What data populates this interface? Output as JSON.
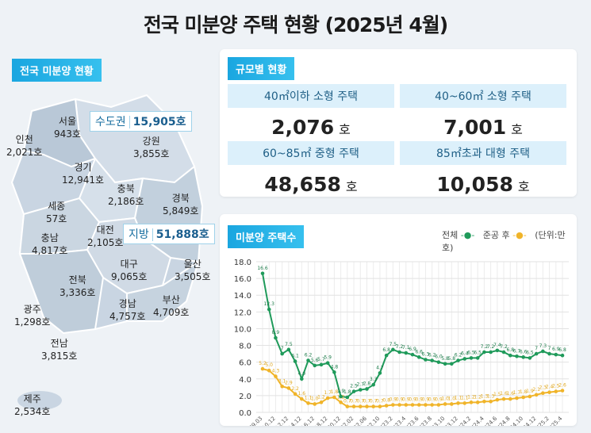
{
  "title": "전국 미분양 주택 현황 (2025년 4월)",
  "map": {
    "tag": "전국 미분양 현황",
    "capital": {
      "label": "수도권",
      "value": "15,905호"
    },
    "provincial": {
      "label": "지방",
      "value": "51,888호"
    },
    "regions": [
      {
        "name": "서울",
        "value": "943호"
      },
      {
        "name": "인천",
        "value": "2,021호"
      },
      {
        "name": "강원",
        "value": "3,855호"
      },
      {
        "name": "경기",
        "value": "12,941호"
      },
      {
        "name": "충북",
        "value": "2,186호"
      },
      {
        "name": "경북",
        "value": "5,849호"
      },
      {
        "name": "세종",
        "value": "57호"
      },
      {
        "name": "대전",
        "value": "2,105호"
      },
      {
        "name": "충남",
        "value": "4,817호"
      },
      {
        "name": "대구",
        "value": "9,065호"
      },
      {
        "name": "울산",
        "value": "3,505호"
      },
      {
        "name": "전북",
        "value": "3,336호"
      },
      {
        "name": "경남",
        "value": "4,757호"
      },
      {
        "name": "부산",
        "value": "4,709호"
      },
      {
        "name": "광주",
        "value": "1,298호"
      },
      {
        "name": "전남",
        "value": "3,815호"
      },
      {
        "name": "제주",
        "value": "2,534호"
      }
    ]
  },
  "size": {
    "tag": "규모별 현황",
    "unit": "호",
    "items": [
      {
        "label": "40㎡이하 소형 주택",
        "value": "2,076"
      },
      {
        "label": "40~60㎡ 소형 주택",
        "value": "7,001"
      },
      {
        "label": "60~85㎡ 중형 주택",
        "value": "48,658"
      },
      {
        "label": "85㎡초과 대형 주택",
        "value": "10,058"
      }
    ]
  },
  "chart_data": {
    "type": "line",
    "title": "미분양 주택수",
    "unit_label": "(단위:만 호)",
    "ylim": [
      0,
      18
    ],
    "yticks": [
      "0.0",
      "2.0",
      "4.0",
      "6.0",
      "8.0",
      "10.0",
      "12.0",
      "14.0",
      "16.0",
      "18.0"
    ],
    "xticks": [
      "'09.03",
      "'10.12",
      "'12.12",
      "'14.12",
      "'16.12",
      "'18.12",
      "'20.12",
      "'22.02",
      "'22.06",
      "'22.10",
      "'23.2",
      "'23.4",
      "'23.6",
      "'23.8",
      "'23.10",
      "'23.12",
      "'24.2",
      "'24.4",
      "'24.6",
      "'24.8",
      "'24.10",
      "'24.12",
      "'25.2",
      "'25.4"
    ],
    "series": [
      {
        "name": "전체",
        "color": "#1f9a5a",
        "values": [
          16.6,
          12.3,
          8.9,
          7.0,
          7.5,
          6.1,
          4.0,
          6.2,
          5.6,
          5.7,
          5.9,
          4.8,
          1.9,
          1.8,
          2.5,
          2.7,
          2.8,
          3.3,
          4.7,
          6.8,
          7.5,
          7.2,
          7.1,
          6.9,
          6.6,
          6.3,
          6.2,
          6.0,
          5.8,
          5.8,
          6.2,
          6.4,
          6.5,
          6.5,
          7.2,
          7.2,
          7.4,
          7.2,
          6.8,
          6.7,
          6.6,
          6.5,
          7.0,
          7.3,
          7.0,
          6.9,
          6.8
        ]
      },
      {
        "name": "준공 후",
        "color": "#f0b429",
        "values": [
          5.2,
          5.0,
          4.3,
          3.1,
          2.9,
          2.2,
          1.6,
          1.1,
          1.0,
          1.2,
          1.7,
          1.8,
          1.2,
          0.7,
          0.7,
          0.7,
          0.7,
          0.7,
          0.7,
          0.8,
          0.9,
          0.9,
          0.9,
          0.9,
          0.9,
          0.9,
          0.9,
          0.9,
          1.0,
          1.0,
          1.1,
          1.1,
          1.2,
          1.2,
          1.3,
          1.3,
          1.5,
          1.6,
          1.6,
          1.7,
          1.8,
          1.9,
          2.1,
          2.3,
          2.4,
          2.5,
          2.6
        ]
      }
    ]
  }
}
